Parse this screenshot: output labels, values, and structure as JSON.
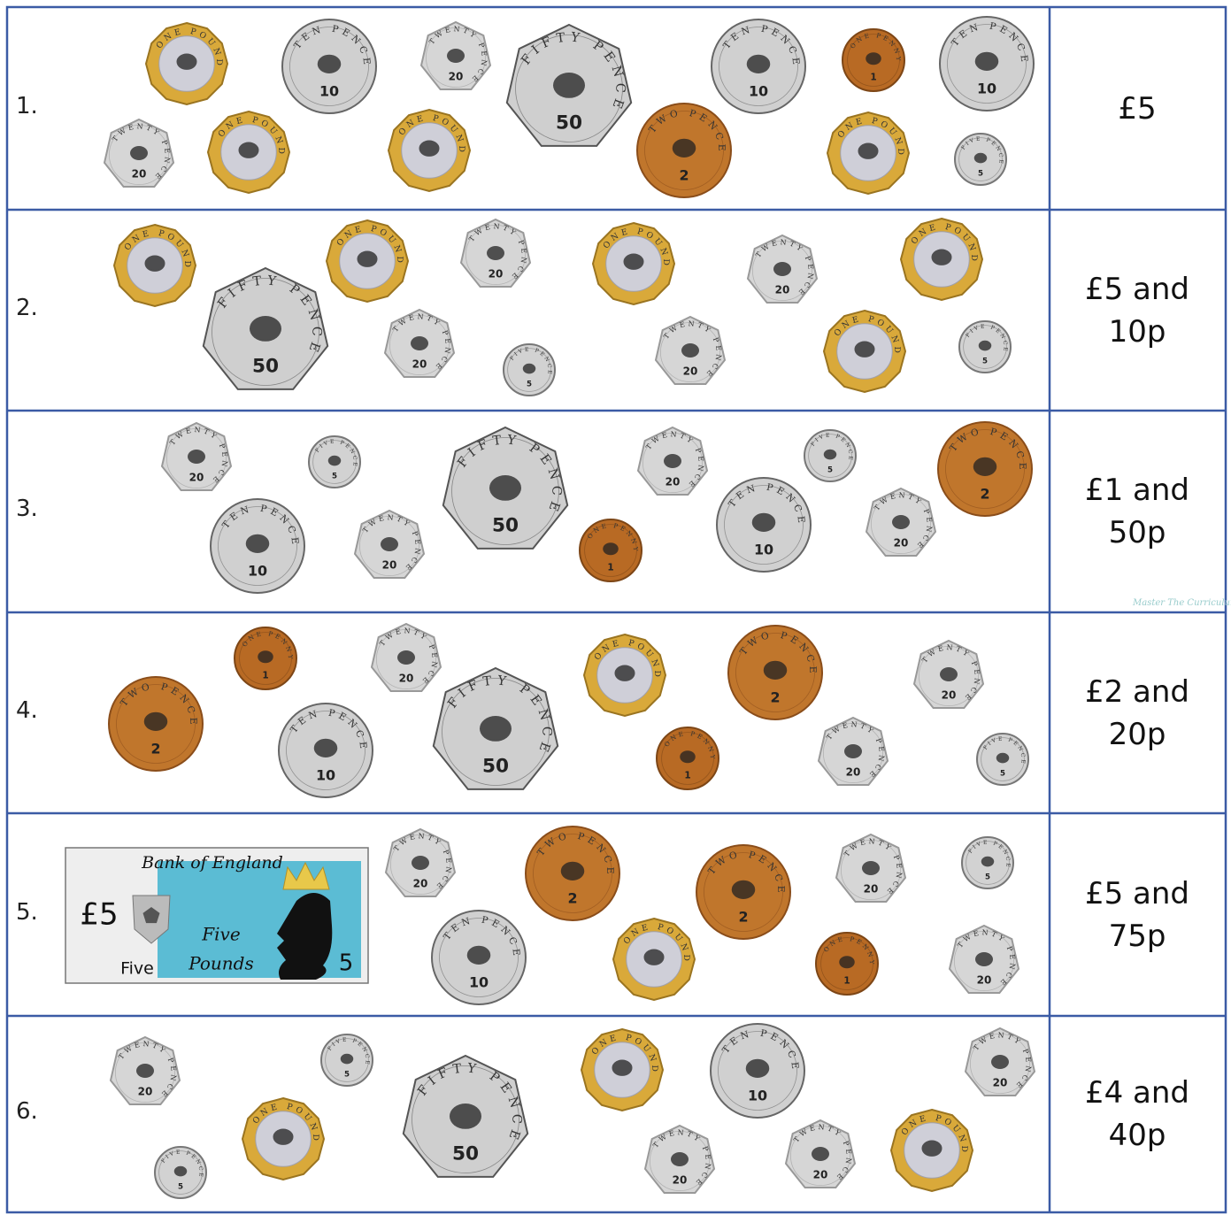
{
  "rows": [
    {
      "number": "1.",
      "amount": "£5"
    },
    {
      "number": "2.",
      "amount": "£5 and 10p"
    },
    {
      "number": "3.",
      "amount": "£1 and 50p"
    },
    {
      "number": "4.",
      "amount": "£2 and 20p"
    },
    {
      "number": "5.",
      "amount": "£5 and 75p"
    },
    {
      "number": "6.",
      "amount": "£4 and 40p"
    }
  ],
  "coin_faces": [
    {
      "legend": "ONE POUND"
    },
    {
      "legend": "TEN PENCE",
      "number": "10"
    },
    {
      "legend": "TWENTY PENCE",
      "number": "20"
    },
    {
      "legend": "FIFTY PENCE",
      "number": "50"
    },
    {
      "legend": "TWO PENCE",
      "number": "2"
    },
    {
      "legend": "ONE PENNY",
      "number": "1"
    },
    {
      "legend": "FIVE PENCE",
      "number": "5"
    }
  ],
  "banknote": {
    "bank": "Bank of England",
    "value": "£5",
    "word": "Five",
    "caption": [
      "Five",
      "Pounds"
    ],
    "number": "5"
  },
  "watermark": "Master The Curriculum"
}
